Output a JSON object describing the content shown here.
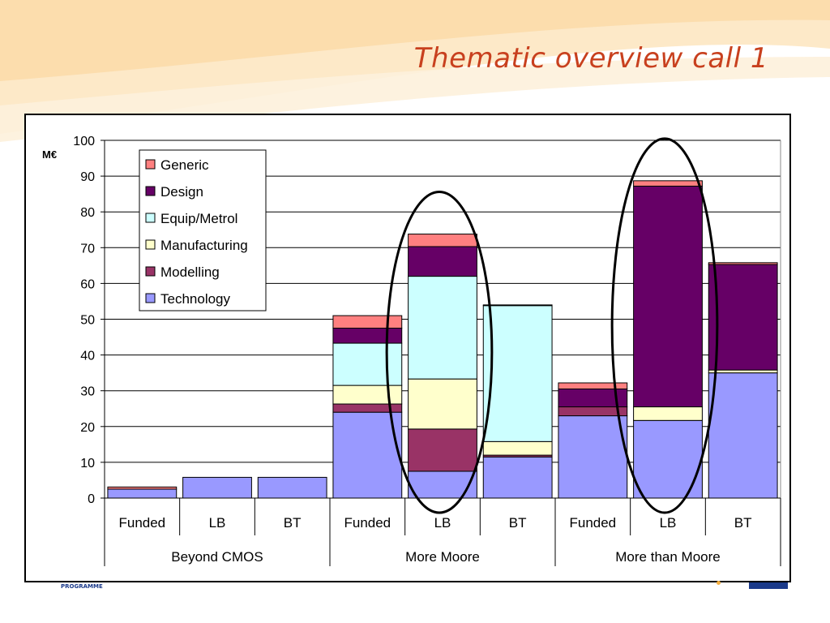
{
  "slide": {
    "title": "Thematic overview call 1",
    "footer_text": "PROGRAMME"
  },
  "chart_data": {
    "type": "bar",
    "stacked": true,
    "ylabel": "M€",
    "ylim": [
      0,
      100
    ],
    "yticks": [
      0,
      10,
      20,
      30,
      40,
      50,
      60,
      70,
      80,
      90,
      100
    ],
    "grid": true,
    "legend_position": "top-left",
    "categories": [
      "Funded",
      "LB",
      "BT",
      "Funded",
      "LB",
      "BT",
      "Funded",
      "LB",
      "BT"
    ],
    "groups": [
      {
        "label": "Beyond CMOS",
        "categories": [
          "Funded",
          "LB",
          "BT"
        ]
      },
      {
        "label": "More Moore",
        "categories": [
          "Funded",
          "LB",
          "BT"
        ]
      },
      {
        "label": "More than Moore",
        "categories": [
          "Funded",
          "LB",
          "BT"
        ]
      }
    ],
    "series": [
      {
        "name": "Technology",
        "color": "#9999ff",
        "values": [
          2.5,
          5.8,
          5.8,
          24,
          7.5,
          11.5,
          23,
          21.7,
          35
        ]
      },
      {
        "name": "Modelling",
        "color": "#993366",
        "values": [
          0,
          0,
          0,
          2.3,
          11.8,
          0.5,
          2.5,
          0,
          0
        ]
      },
      {
        "name": "Manufacturing",
        "color": "#ffffcc",
        "values": [
          0,
          0,
          0,
          5.2,
          14,
          3.8,
          0,
          3.8,
          0.8
        ]
      },
      {
        "name": "Equip/Metrol",
        "color": "#ccffff",
        "values": [
          0,
          0,
          0,
          11.8,
          28.7,
          38,
          0,
          0,
          0
        ]
      },
      {
        "name": "Design",
        "color": "#660066",
        "values": [
          0,
          0,
          0,
          4.2,
          8.3,
          0.2,
          5,
          61.7,
          29.5
        ]
      },
      {
        "name": "Generic",
        "color": "#ff8080",
        "values": [
          0.6,
          0,
          0,
          3.5,
          3.5,
          0,
          1.7,
          1.5,
          0.5
        ]
      }
    ],
    "highlighted_categories": [
      4,
      7
    ]
  }
}
